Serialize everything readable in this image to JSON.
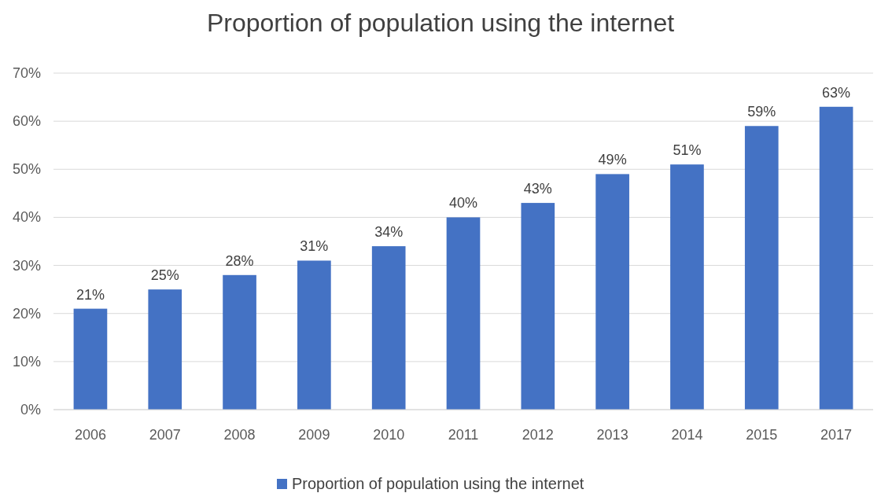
{
  "chart_data": {
    "type": "bar",
    "title": "Proportion of population using the internet",
    "categories": [
      "2006",
      "2007",
      "2008",
      "2009",
      "2010",
      "2011",
      "2012",
      "2013",
      "2014",
      "2015",
      "2017"
    ],
    "series": [
      {
        "name": "Proportion of population using the internet",
        "color": "#4472c4",
        "values": [
          21,
          25,
          28,
          31,
          34,
          40,
          43,
          49,
          51,
          59,
          63
        ],
        "value_labels": [
          "21%",
          "25%",
          "28%",
          "31%",
          "34%",
          "40%",
          "43%",
          "49%",
          "51%",
          "59%",
          "63%"
        ]
      }
    ],
    "ylim": [
      0,
      70
    ],
    "yticks": [
      {
        "value": 0,
        "label": "0%"
      },
      {
        "value": 10,
        "label": "10%"
      },
      {
        "value": 20,
        "label": "20%"
      },
      {
        "value": 30,
        "label": "30%"
      },
      {
        "value": 40,
        "label": "40%"
      },
      {
        "value": 50,
        "label": "50%"
      },
      {
        "value": 60,
        "label": "60%"
      },
      {
        "value": 70,
        "label": "70%"
      }
    ],
    "grid": "y",
    "legend": "bottom"
  }
}
